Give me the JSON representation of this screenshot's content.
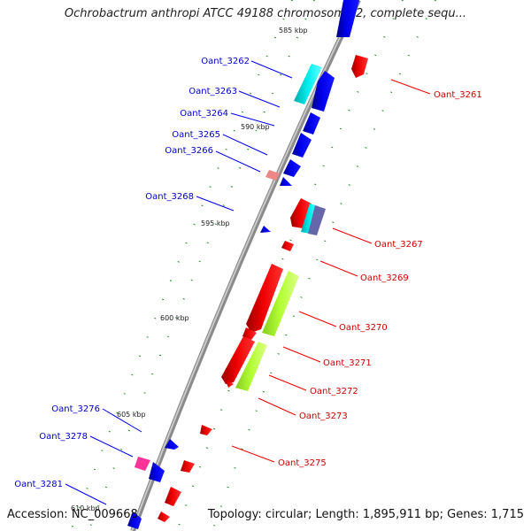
{
  "title": "Ochrobactrum anthropi ATCC 49188 chromosome 2, complete sequ...",
  "footer": {
    "accession": "Accession: NC_009668",
    "topology": "Topology: circular; Length: 1,895,911 bp; Genes: 1,715"
  },
  "colors": {
    "backbone": "#8a8a8a",
    "forward_gene": "#0000ee",
    "reverse_gene": "#ee0000",
    "cyan_feature": "#00e5ee",
    "lime_feature": "#b3ff33",
    "pink_feature": "#ff3399",
    "salmon_feature": "#ee8888",
    "tick": "#228822"
  },
  "scale_labels": [
    "585 kbp",
    "590 kbp",
    "595 kbp",
    "600 kbp",
    "605 kbp",
    "610 kbp"
  ],
  "left_genes": [
    "Oant_3262",
    "Oant_3263",
    "Oant_3264",
    "Oant_3265",
    "Oant_3266",
    "Oant_3268",
    "Oant_3276",
    "Oant_3278",
    "Oant_3281"
  ],
  "right_genes": [
    "Oant_3261",
    "Oant_3267",
    "Oant_3269",
    "Oant_3270",
    "Oant_3271",
    "Oant_3272",
    "Oant_3273",
    "Oant_3275"
  ]
}
